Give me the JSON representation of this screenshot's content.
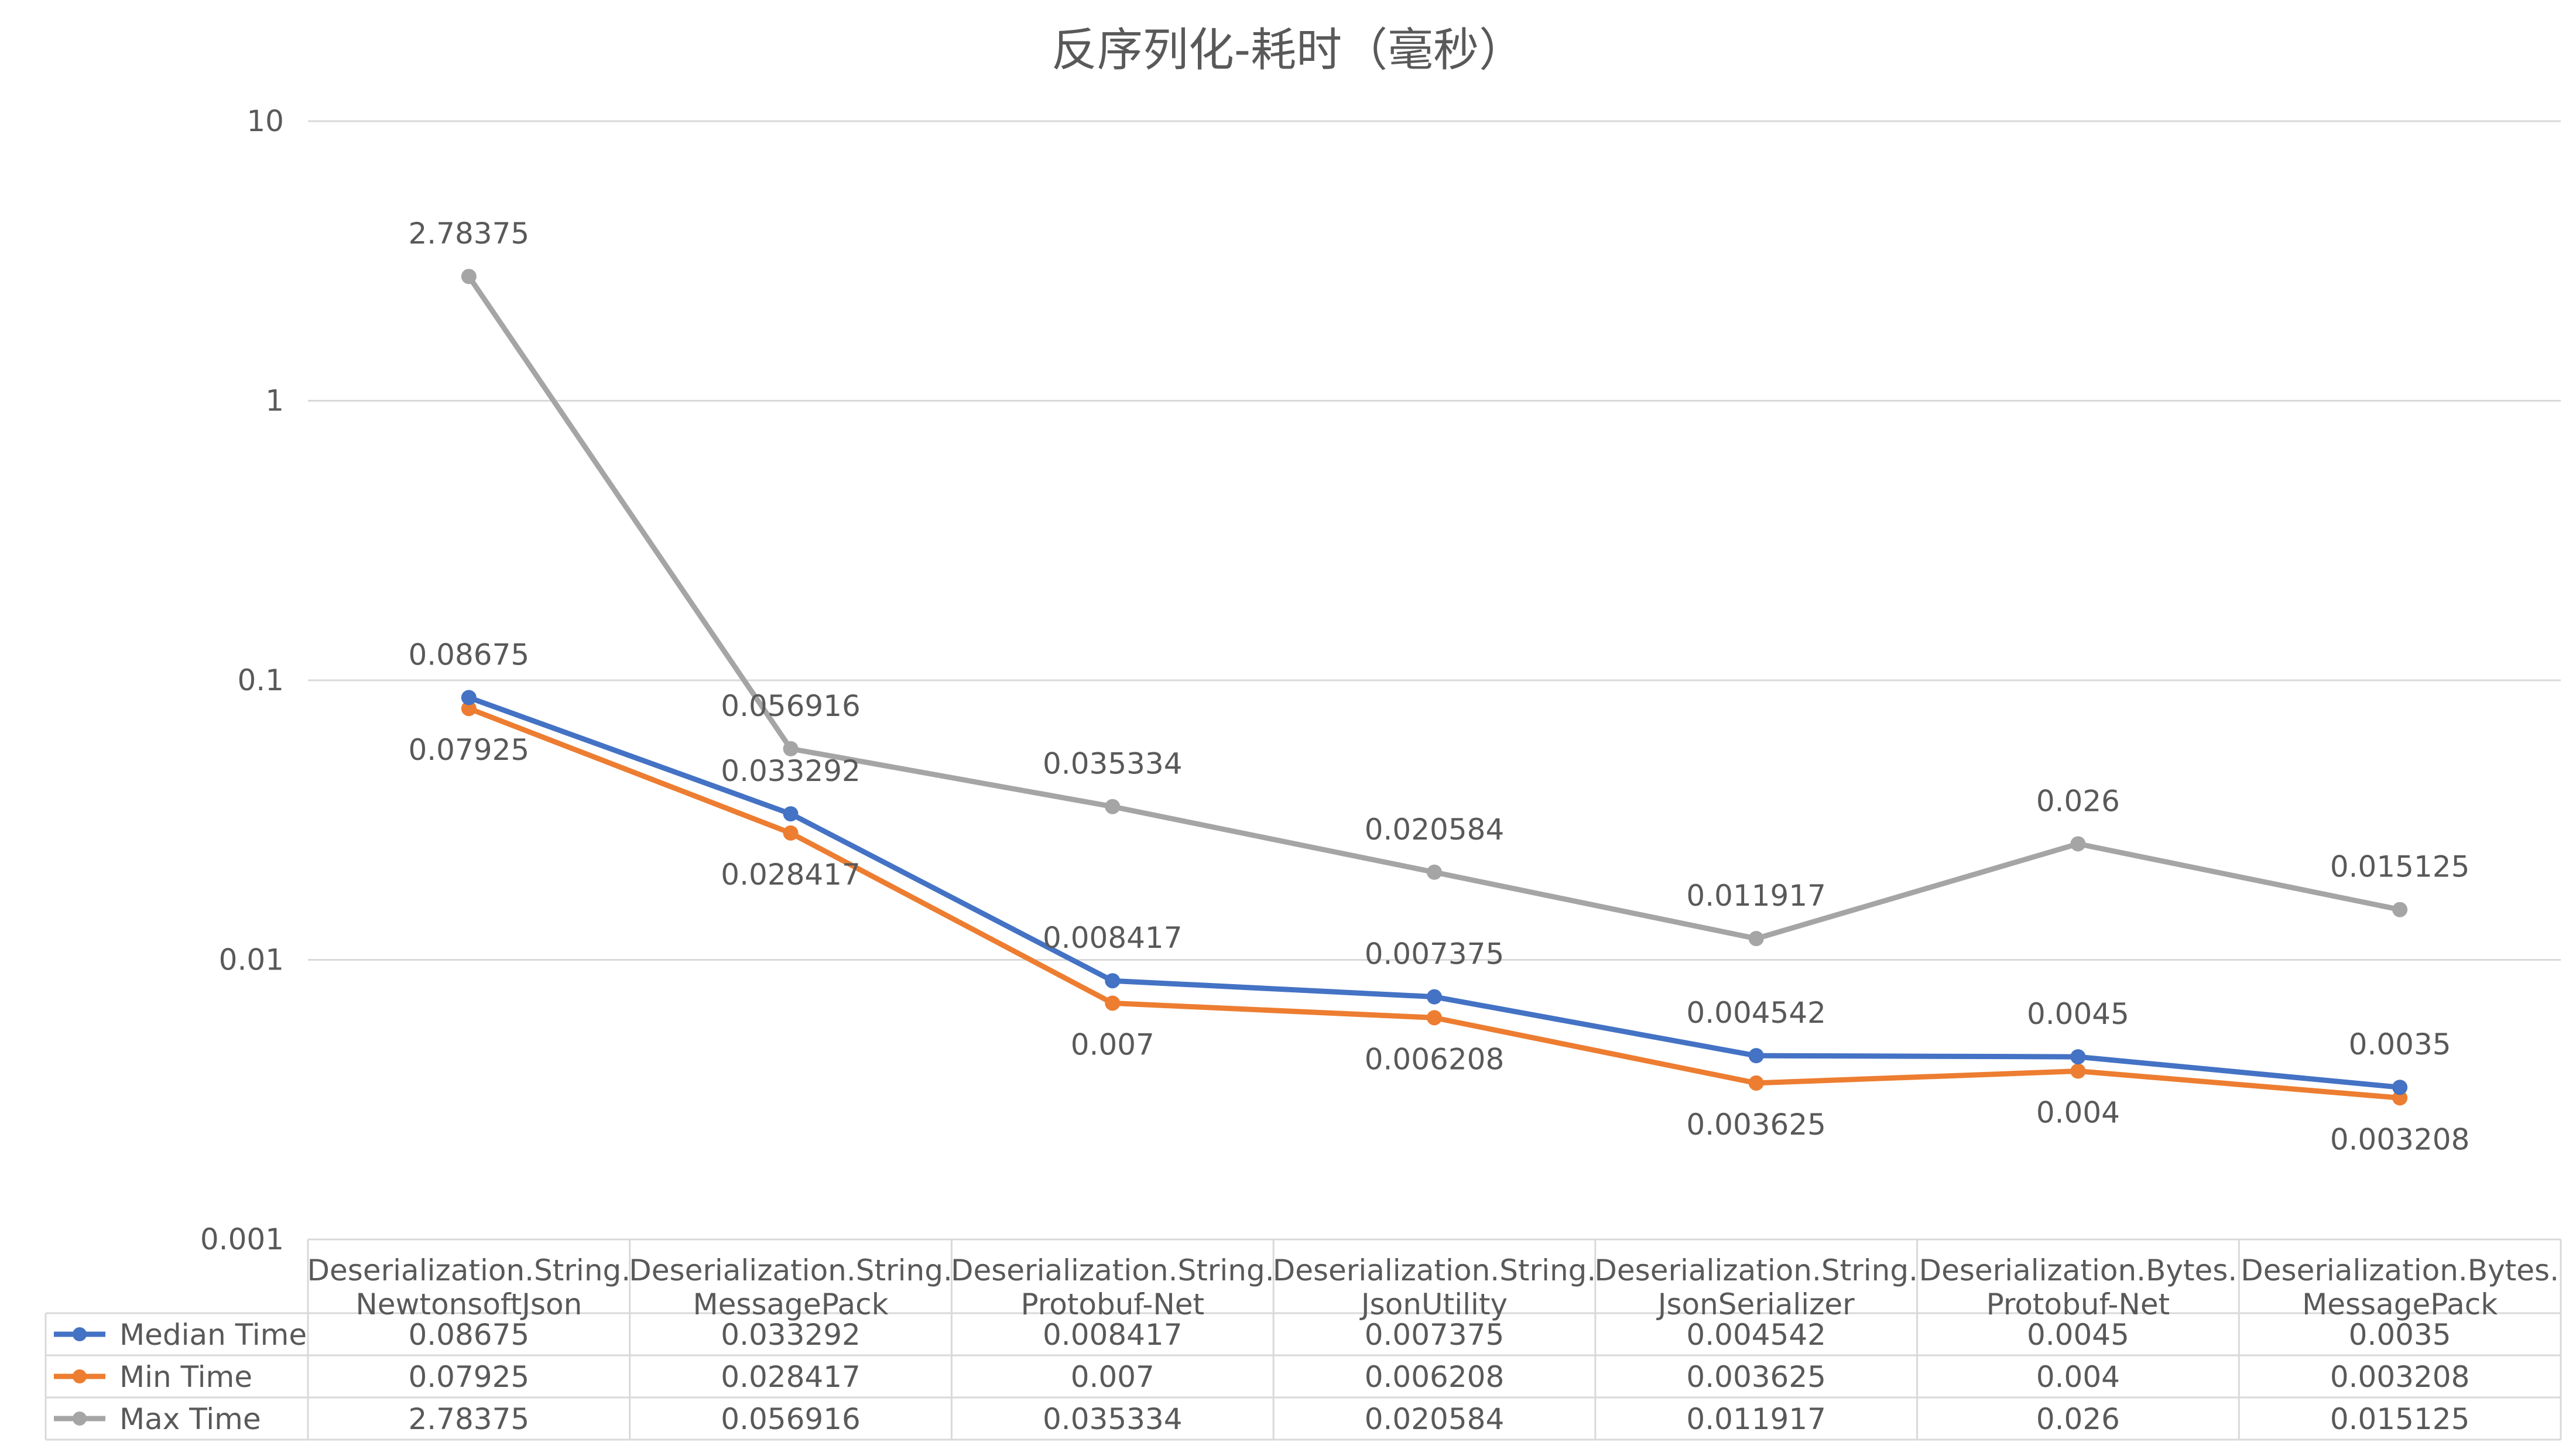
{
  "chart_data": {
    "type": "line",
    "title": "反序列化-耗时（毫秒）",
    "xlabel": "",
    "ylabel": "",
    "yscale": "log",
    "ylim": [
      0.001,
      10
    ],
    "yticks": [
      "10",
      "1",
      "0.1",
      "0.01",
      "0.001"
    ],
    "grid": true,
    "legend": "data-table",
    "categories": [
      [
        "Deserialization.String.",
        "NewtonsoftJson"
      ],
      [
        "Deserialization.String.",
        "MessagePack"
      ],
      [
        "Deserialization.String.",
        "Protobuf-Net"
      ],
      [
        "Deserialization.String.",
        "JsonUtility"
      ],
      [
        "Deserialization.String.",
        "JsonSerializer"
      ],
      [
        "Deserialization.Bytes.",
        "Protobuf-Net"
      ],
      [
        "Deserialization.Bytes.",
        "MessagePack"
      ]
    ],
    "series": [
      {
        "name": "Median Time",
        "color": "#4472C4",
        "values": [
          0.08675,
          0.033292,
          0.008417,
          0.007375,
          0.004542,
          0.0045,
          0.0035
        ],
        "labels": [
          "0.08675",
          "0.033292",
          "0.008417",
          "0.007375",
          "0.004542",
          "0.0045",
          "0.0035"
        ],
        "label_position": "above"
      },
      {
        "name": "Min Time",
        "color": "#ED7D31",
        "values": [
          0.07925,
          0.028417,
          0.007,
          0.006208,
          0.003625,
          0.004,
          0.003208
        ],
        "labels": [
          "0.07925",
          "0.028417",
          "0.007",
          "0.006208",
          "0.003625",
          "0.004",
          "0.003208"
        ],
        "label_position": "below"
      },
      {
        "name": "Max Time",
        "color": "#A5A5A5",
        "values": [
          2.78375,
          0.056916,
          0.035334,
          0.020584,
          0.011917,
          0.026,
          0.015125
        ],
        "labels": [
          "2.78375",
          "0.056916",
          "0.035334",
          "0.020584",
          "0.011917",
          "0.026",
          "0.015125"
        ],
        "label_position": "above"
      }
    ],
    "colors": {
      "grid": "#D9D9D9",
      "text": "#595959",
      "table_border": "#D9D9D9"
    }
  }
}
